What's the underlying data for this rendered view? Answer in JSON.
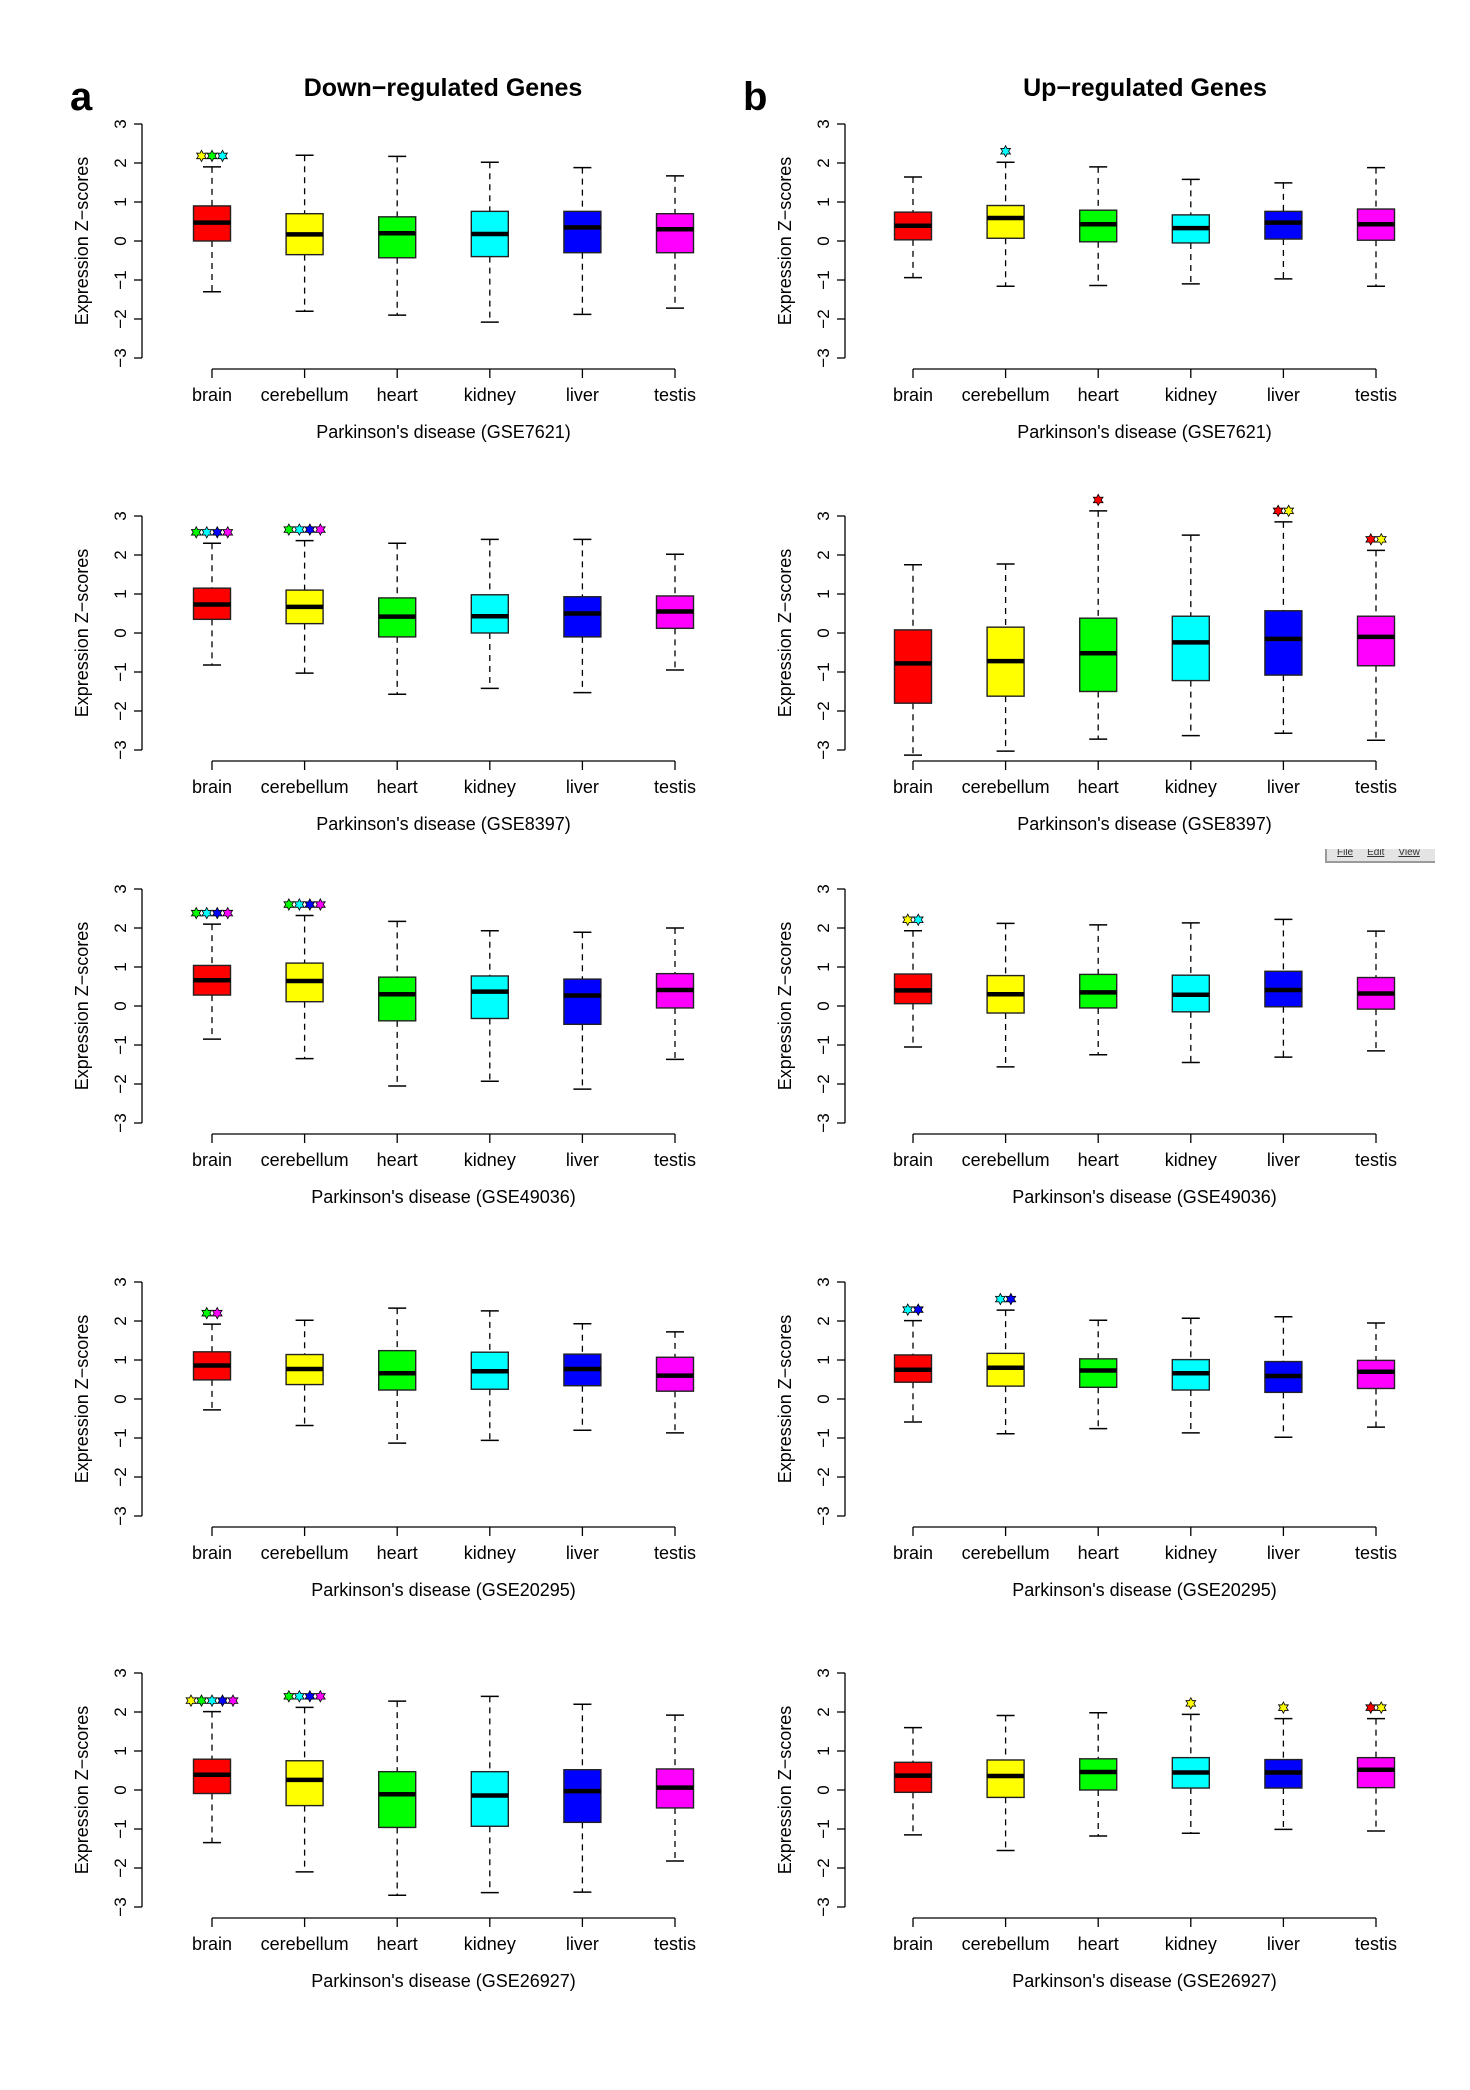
{
  "figure": {
    "panel_letters": [
      "a",
      "b"
    ],
    "column_titles": [
      "Down−regulated Genes",
      "Up−regulated Genes"
    ]
  },
  "menu_fragment": {
    "items": [
      "File",
      "Edit",
      "View"
    ]
  },
  "colors": {
    "brain": "#ff0000",
    "cerebellum": "#ffff00",
    "heart": "#00ff00",
    "kidney": "#00ffff",
    "liver": "#0000ff",
    "testis": "#ff00ff"
  },
  "chart_data": [
    {
      "type": "box",
      "column": "Down-regulated Genes",
      "panel": "a",
      "xlabel": "Parkinson's disease (GSE7621)",
      "ylabel": "Expression Z−scores",
      "ylim": [
        -3,
        3
      ],
      "yticks": [
        "-3",
        "-2",
        "-1",
        "0",
        "1",
        "2",
        "3"
      ],
      "categories": [
        "brain",
        "cerebellum",
        "heart",
        "kidney",
        "liver",
        "testis"
      ],
      "boxes": [
        {
          "min": -1.3,
          "q1": 0.0,
          "median": 0.47,
          "q3": 0.9,
          "max": 1.9,
          "stars": [
            "cerebellum",
            "heart",
            "kidney"
          ]
        },
        {
          "min": -1.8,
          "q1": -0.35,
          "median": 0.17,
          "q3": 0.7,
          "max": 2.2,
          "stars": []
        },
        {
          "min": -1.9,
          "q1": -0.43,
          "median": 0.2,
          "q3": 0.62,
          "max": 2.17,
          "stars": []
        },
        {
          "min": -2.08,
          "q1": -0.4,
          "median": 0.18,
          "q3": 0.76,
          "max": 2.02,
          "stars": []
        },
        {
          "min": -1.88,
          "q1": -0.3,
          "median": 0.35,
          "q3": 0.76,
          "max": 1.88,
          "stars": []
        },
        {
          "min": -1.72,
          "q1": -0.3,
          "median": 0.3,
          "q3": 0.7,
          "max": 1.67,
          "stars": []
        }
      ]
    },
    {
      "type": "box",
      "column": "Up-regulated Genes",
      "panel": "b",
      "xlabel": "Parkinson's disease (GSE7621)",
      "ylabel": "Expression Z−scores",
      "ylim": [
        -3,
        3
      ],
      "yticks": [
        "-3",
        "-2",
        "-1",
        "0",
        "1",
        "2",
        "3"
      ],
      "categories": [
        "brain",
        "cerebellum",
        "heart",
        "kidney",
        "liver",
        "testis"
      ],
      "boxes": [
        {
          "min": -0.94,
          "q1": 0.03,
          "median": 0.39,
          "q3": 0.74,
          "max": 1.64,
          "stars": []
        },
        {
          "min": -1.16,
          "q1": 0.07,
          "median": 0.59,
          "q3": 0.91,
          "max": 2.02,
          "stars": [
            "kidney"
          ]
        },
        {
          "min": -1.14,
          "q1": -0.02,
          "median": 0.43,
          "q3": 0.79,
          "max": 1.9,
          "stars": []
        },
        {
          "min": -1.1,
          "q1": -0.05,
          "median": 0.33,
          "q3": 0.67,
          "max": 1.58,
          "stars": []
        },
        {
          "min": -0.97,
          "q1": 0.05,
          "median": 0.47,
          "q3": 0.76,
          "max": 1.49,
          "stars": []
        },
        {
          "min": -1.16,
          "q1": 0.02,
          "median": 0.43,
          "q3": 0.82,
          "max": 1.88,
          "stars": []
        }
      ]
    },
    {
      "type": "box",
      "column": "Down-regulated Genes",
      "xlabel": "Parkinson's disease (GSE8397)",
      "ylabel": "Expression Z−scores",
      "ylim": [
        -3,
        3
      ],
      "yticks": [
        "-3",
        "-2",
        "-1",
        "0",
        "1",
        "2",
        "3"
      ],
      "categories": [
        "brain",
        "cerebellum",
        "heart",
        "kidney",
        "liver",
        "testis"
      ],
      "boxes": [
        {
          "min": -0.82,
          "q1": 0.35,
          "median": 0.73,
          "q3": 1.15,
          "max": 2.3,
          "stars": [
            "heart",
            "kidney",
            "liver",
            "testis"
          ]
        },
        {
          "min": -1.03,
          "q1": 0.24,
          "median": 0.67,
          "q3": 1.1,
          "max": 2.37,
          "stars": [
            "heart",
            "kidney",
            "liver",
            "testis"
          ]
        },
        {
          "min": -1.57,
          "q1": -0.1,
          "median": 0.42,
          "q3": 0.9,
          "max": 2.3,
          "stars": []
        },
        {
          "min": -1.42,
          "q1": 0.0,
          "median": 0.43,
          "q3": 0.98,
          "max": 2.4,
          "stars": []
        },
        {
          "min": -1.53,
          "q1": -0.1,
          "median": 0.5,
          "q3": 0.93,
          "max": 2.4,
          "stars": []
        },
        {
          "min": -0.95,
          "q1": 0.12,
          "median": 0.55,
          "q3": 0.95,
          "max": 2.02,
          "stars": []
        }
      ]
    },
    {
      "type": "box",
      "column": "Up-regulated Genes",
      "xlabel": "Parkinson's disease (GSE8397)",
      "ylabel": "Expression Z−scores",
      "ylim": [
        -3,
        3
      ],
      "yticks": [
        "-3",
        "-2",
        "-1",
        "0",
        "1",
        "2",
        "3"
      ],
      "categories": [
        "brain",
        "cerebellum",
        "heart",
        "kidney",
        "liver",
        "testis"
      ],
      "boxes": [
        {
          "min": -3.13,
          "q1": -1.8,
          "median": -0.78,
          "q3": 0.08,
          "max": 1.75,
          "stars": []
        },
        {
          "min": -3.03,
          "q1": -1.62,
          "median": -0.72,
          "q3": 0.15,
          "max": 1.77,
          "stars": []
        },
        {
          "min": -2.72,
          "q1": -1.5,
          "median": -0.52,
          "q3": 0.38,
          "max": 3.13,
          "stars": [
            "brain"
          ]
        },
        {
          "min": -2.63,
          "q1": -1.22,
          "median": -0.24,
          "q3": 0.43,
          "max": 2.51,
          "stars": []
        },
        {
          "min": -2.57,
          "q1": -1.08,
          "median": -0.15,
          "q3": 0.57,
          "max": 2.85,
          "stars": [
            "brain",
            "cerebellum"
          ]
        },
        {
          "min": -2.75,
          "q1": -0.84,
          "median": -0.1,
          "q3": 0.43,
          "max": 2.12,
          "stars": [
            "brain",
            "cerebellum"
          ]
        }
      ]
    },
    {
      "type": "box",
      "column": "Down-regulated Genes",
      "xlabel": "Parkinson's disease (GSE49036)",
      "ylabel": "Expression Z−scores",
      "ylim": [
        -3,
        3
      ],
      "yticks": [
        "-3",
        "-2",
        "-1",
        "0",
        "1",
        "2",
        "3"
      ],
      "categories": [
        "brain",
        "cerebellum",
        "heart",
        "kidney",
        "liver",
        "testis"
      ],
      "boxes": [
        {
          "min": -0.85,
          "q1": 0.28,
          "median": 0.66,
          "q3": 1.04,
          "max": 2.1,
          "stars": [
            "heart",
            "kidney",
            "liver",
            "testis"
          ]
        },
        {
          "min": -1.35,
          "q1": 0.11,
          "median": 0.64,
          "q3": 1.1,
          "max": 2.32,
          "stars": [
            "heart",
            "kidney",
            "liver",
            "testis"
          ]
        },
        {
          "min": -2.05,
          "q1": -0.38,
          "median": 0.3,
          "q3": 0.74,
          "max": 2.17,
          "stars": []
        },
        {
          "min": -1.93,
          "q1": -0.32,
          "median": 0.37,
          "q3": 0.77,
          "max": 1.93,
          "stars": []
        },
        {
          "min": -2.13,
          "q1": -0.47,
          "median": 0.27,
          "q3": 0.69,
          "max": 1.89,
          "stars": []
        },
        {
          "min": -1.37,
          "q1": -0.05,
          "median": 0.41,
          "q3": 0.83,
          "max": 2.0,
          "stars": []
        }
      ]
    },
    {
      "type": "box",
      "column": "Up-regulated Genes",
      "xlabel": "Parkinson's disease (GSE49036)",
      "ylabel": "Expression Z−scores",
      "ylim": [
        -3,
        3
      ],
      "yticks": [
        "-3",
        "-2",
        "-1",
        "0",
        "1",
        "2",
        "3"
      ],
      "categories": [
        "brain",
        "cerebellum",
        "heart",
        "kidney",
        "liver",
        "testis"
      ],
      "boxes": [
        {
          "min": -1.05,
          "q1": 0.06,
          "median": 0.4,
          "q3": 0.82,
          "max": 1.93,
          "stars": [
            "cerebellum",
            "kidney"
          ]
        },
        {
          "min": -1.56,
          "q1": -0.18,
          "median": 0.3,
          "q3": 0.78,
          "max": 2.12,
          "stars": []
        },
        {
          "min": -1.25,
          "q1": -0.05,
          "median": 0.35,
          "q3": 0.81,
          "max": 2.08,
          "stars": []
        },
        {
          "min": -1.45,
          "q1": -0.15,
          "median": 0.29,
          "q3": 0.79,
          "max": 2.13,
          "stars": []
        },
        {
          "min": -1.31,
          "q1": -0.02,
          "median": 0.41,
          "q3": 0.89,
          "max": 2.22,
          "stars": []
        },
        {
          "min": -1.15,
          "q1": -0.08,
          "median": 0.32,
          "q3": 0.73,
          "max": 1.92,
          "stars": []
        }
      ]
    },
    {
      "type": "box",
      "column": "Down-regulated Genes",
      "xlabel": "Parkinson's disease (GSE20295)",
      "ylabel": "Expression Z−scores",
      "ylim": [
        -3,
        3
      ],
      "yticks": [
        "-3",
        "-2",
        "-1",
        "0",
        "1",
        "2",
        "3"
      ],
      "categories": [
        "brain",
        "cerebellum",
        "heart",
        "kidney",
        "liver",
        "testis"
      ],
      "boxes": [
        {
          "min": -0.28,
          "q1": 0.49,
          "median": 0.86,
          "q3": 1.21,
          "max": 1.92,
          "stars": [
            "heart",
            "testis"
          ]
        },
        {
          "min": -0.68,
          "q1": 0.37,
          "median": 0.77,
          "q3": 1.14,
          "max": 2.02,
          "stars": []
        },
        {
          "min": -1.13,
          "q1": 0.23,
          "median": 0.66,
          "q3": 1.24,
          "max": 2.33,
          "stars": []
        },
        {
          "min": -1.06,
          "q1": 0.25,
          "median": 0.71,
          "q3": 1.2,
          "max": 2.26,
          "stars": []
        },
        {
          "min": -0.8,
          "q1": 0.34,
          "median": 0.77,
          "q3": 1.15,
          "max": 1.93,
          "stars": []
        },
        {
          "min": -0.87,
          "q1": 0.2,
          "median": 0.6,
          "q3": 1.07,
          "max": 1.72,
          "stars": []
        }
      ]
    },
    {
      "type": "box",
      "column": "Up-regulated Genes",
      "xlabel": "Parkinson's disease (GSE20295)",
      "ylabel": "Expression Z−scores",
      "ylim": [
        -3,
        3
      ],
      "yticks": [
        "-3",
        "-2",
        "-1",
        "0",
        "1",
        "2",
        "3"
      ],
      "categories": [
        "brain",
        "cerebellum",
        "heart",
        "kidney",
        "liver",
        "testis"
      ],
      "boxes": [
        {
          "min": -0.59,
          "q1": 0.43,
          "median": 0.75,
          "q3": 1.13,
          "max": 2.01,
          "stars": [
            "kidney",
            "liver"
          ]
        },
        {
          "min": -0.89,
          "q1": 0.33,
          "median": 0.8,
          "q3": 1.17,
          "max": 2.28,
          "stars": [
            "kidney",
            "liver"
          ]
        },
        {
          "min": -0.76,
          "q1": 0.3,
          "median": 0.73,
          "q3": 1.03,
          "max": 2.02,
          "stars": []
        },
        {
          "min": -0.87,
          "q1": 0.23,
          "median": 0.66,
          "q3": 1.01,
          "max": 2.07,
          "stars": []
        },
        {
          "min": -0.98,
          "q1": 0.17,
          "median": 0.59,
          "q3": 0.96,
          "max": 2.11,
          "stars": []
        },
        {
          "min": -0.72,
          "q1": 0.27,
          "median": 0.7,
          "q3": 0.99,
          "max": 1.95,
          "stars": []
        }
      ]
    },
    {
      "type": "box",
      "column": "Down-regulated Genes",
      "xlabel": "Parkinson's disease (GSE26927)",
      "ylabel": "Expression Z−scores",
      "ylim": [
        -3,
        3
      ],
      "yticks": [
        "-3",
        "-2",
        "-1",
        "0",
        "1",
        "2",
        "3"
      ],
      "categories": [
        "brain",
        "cerebellum",
        "heart",
        "kidney",
        "liver",
        "testis"
      ],
      "boxes": [
        {
          "min": -1.35,
          "q1": -0.09,
          "median": 0.39,
          "q3": 0.79,
          "max": 2.01,
          "stars": [
            "cerebellum",
            "heart",
            "kidney",
            "liver",
            "testis"
          ]
        },
        {
          "min": -2.1,
          "q1": -0.4,
          "median": 0.26,
          "q3": 0.75,
          "max": 2.12,
          "stars": [
            "heart",
            "kidney",
            "liver",
            "testis"
          ]
        },
        {
          "min": -2.7,
          "q1": -0.96,
          "median": -0.11,
          "q3": 0.47,
          "max": 2.28,
          "stars": []
        },
        {
          "min": -2.63,
          "q1": -0.93,
          "median": -0.14,
          "q3": 0.47,
          "max": 2.4,
          "stars": []
        },
        {
          "min": -2.62,
          "q1": -0.83,
          "median": -0.03,
          "q3": 0.52,
          "max": 2.2,
          "stars": []
        },
        {
          "min": -1.82,
          "q1": -0.46,
          "median": 0.06,
          "q3": 0.54,
          "max": 1.92,
          "stars": []
        }
      ]
    },
    {
      "type": "box",
      "column": "Up-regulated Genes",
      "xlabel": "Parkinson's disease (GSE26927)",
      "ylabel": "Expression Z−scores",
      "ylim": [
        -3,
        3
      ],
      "yticks": [
        "-3",
        "-2",
        "-1",
        "0",
        "1",
        "2",
        "3"
      ],
      "categories": [
        "brain",
        "cerebellum",
        "heart",
        "kidney",
        "liver",
        "testis"
      ],
      "boxes": [
        {
          "min": -1.15,
          "q1": -0.06,
          "median": 0.37,
          "q3": 0.71,
          "max": 1.6,
          "stars": []
        },
        {
          "min": -1.55,
          "q1": -0.19,
          "median": 0.36,
          "q3": 0.77,
          "max": 1.91,
          "stars": []
        },
        {
          "min": -1.18,
          "q1": 0.0,
          "median": 0.46,
          "q3": 0.8,
          "max": 1.98,
          "stars": []
        },
        {
          "min": -1.11,
          "q1": 0.05,
          "median": 0.45,
          "q3": 0.83,
          "max": 1.94,
          "stars": [
            "cerebellum"
          ]
        },
        {
          "min": -1.01,
          "q1": 0.05,
          "median": 0.45,
          "q3": 0.78,
          "max": 1.83,
          "stars": [
            "cerebellum"
          ]
        },
        {
          "min": -1.05,
          "q1": 0.06,
          "median": 0.52,
          "q3": 0.83,
          "max": 1.83,
          "stars": [
            "brain",
            "cerebellum"
          ]
        }
      ]
    }
  ]
}
